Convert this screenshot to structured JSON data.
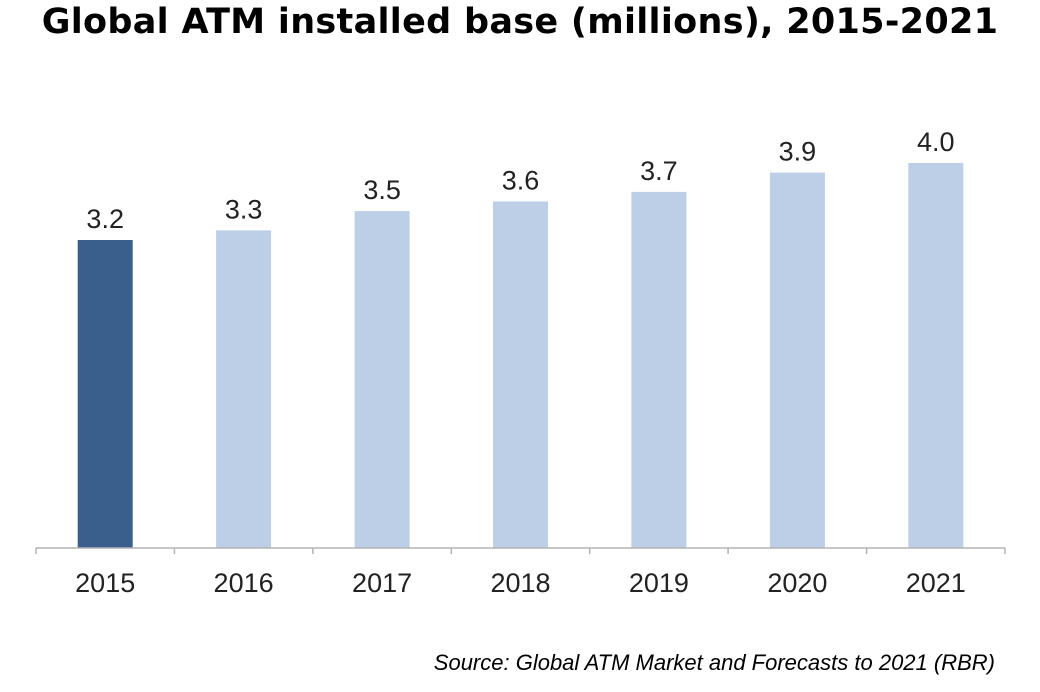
{
  "chart_data": {
    "type": "bar",
    "title": "Global ATM installed base (millions), 2015-2021",
    "categories": [
      "2015",
      "2016",
      "2017",
      "2018",
      "2019",
      "2020",
      "2021"
    ],
    "values": [
      3.2,
      3.3,
      3.5,
      3.6,
      3.7,
      3.9,
      4.0
    ],
    "value_labels": [
      "3.2",
      "3.3",
      "3.5",
      "3.6",
      "3.7",
      "3.9",
      "4.0"
    ],
    "xlabel": "",
    "ylabel": "",
    "ylim": [
      0,
      4.0
    ],
    "grid": false,
    "legend": "none",
    "highlight_index": 0,
    "source": "Source: Global ATM Market and Forecasts to 2021 (RBR)"
  },
  "colors": {
    "highlight_bar": "#3a5f8c",
    "bar": "#bccfe7",
    "axis": "#b3b3b3",
    "text": "#222222"
  }
}
